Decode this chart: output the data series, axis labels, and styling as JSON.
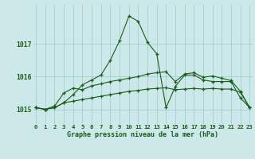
{
  "title": "Graphe pression niveau de la mer (hPa)",
  "background_color": "#cce8e8",
  "plot_bg_color": "#cce8e8",
  "grid_color": "#99cccc",
  "line_color": "#1a5c1a",
  "tick_color": "#1a5c1a",
  "hours": [
    0,
    1,
    2,
    3,
    4,
    5,
    6,
    7,
    8,
    9,
    10,
    11,
    12,
    13,
    14,
    15,
    16,
    17,
    18,
    19,
    20,
    21,
    22,
    23
  ],
  "series1": [
    1015.05,
    1015.0,
    1015.05,
    1015.2,
    1015.45,
    1015.75,
    1015.9,
    1016.05,
    1016.5,
    1017.1,
    1017.85,
    1017.7,
    1017.05,
    1016.7,
    1015.05,
    1015.7,
    1016.05,
    1016.05,
    1015.9,
    1015.85,
    1015.85,
    1015.85,
    1015.35,
    1015.05
  ],
  "series2": [
    1015.05,
    1015.0,
    1015.1,
    1015.5,
    1015.65,
    1015.6,
    1015.72,
    1015.78,
    1015.85,
    1015.9,
    1015.95,
    1016.0,
    1016.08,
    1016.12,
    1016.15,
    1015.85,
    1016.08,
    1016.12,
    1015.98,
    1016.02,
    1015.95,
    1015.88,
    1015.55,
    1015.05
  ],
  "series3": [
    1015.05,
    1015.0,
    1015.05,
    1015.2,
    1015.25,
    1015.3,
    1015.35,
    1015.4,
    1015.45,
    1015.5,
    1015.55,
    1015.58,
    1015.62,
    1015.64,
    1015.66,
    1015.6,
    1015.62,
    1015.64,
    1015.62,
    1015.64,
    1015.62,
    1015.62,
    1015.52,
    1015.05
  ],
  "yticks": [
    1015,
    1016,
    1017
  ],
  "ylim": [
    1014.55,
    1018.2
  ],
  "xlim": [
    -0.3,
    23.3
  ],
  "xticks": [
    0,
    1,
    2,
    3,
    4,
    5,
    6,
    7,
    8,
    9,
    10,
    11,
    12,
    13,
    14,
    15,
    16,
    17,
    18,
    19,
    20,
    21,
    22,
    23
  ]
}
